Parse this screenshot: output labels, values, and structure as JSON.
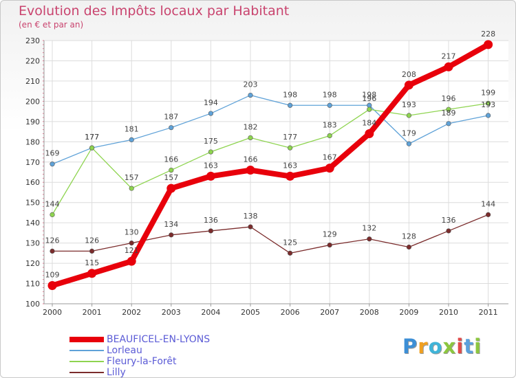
{
  "chart_data": {
    "type": "line",
    "title": "Evolution des Impôts locaux par Habitant",
    "subtitle": "(en € et par an)",
    "x": [
      "2000",
      "2001",
      "2002",
      "2003",
      "2004",
      "2005",
      "2006",
      "2007",
      "2008",
      "2009",
      "2010",
      "2011"
    ],
    "ylim": [
      100,
      230
    ],
    "yticks": [
      100,
      110,
      120,
      130,
      140,
      150,
      160,
      170,
      180,
      190,
      200,
      210,
      220,
      230
    ],
    "grid": true,
    "legend_position": "bottom-left",
    "series": [
      {
        "name": "BEAUFICEL-EN-LYONS",
        "color": "#e8000b",
        "values": [
          109,
          115,
          121,
          157,
          163,
          166,
          163,
          167,
          184,
          208,
          217,
          228
        ]
      },
      {
        "name": "Lorleau",
        "color": "#5fa2d8",
        "values": [
          169,
          177,
          181,
          187,
          194,
          203,
          198,
          198,
          198,
          179,
          189,
          193
        ]
      },
      {
        "name": "Fleury-la-Forêt",
        "color": "#8ed44f",
        "values": [
          144,
          177,
          157,
          166,
          175,
          182,
          177,
          183,
          196,
          193,
          196,
          199
        ]
      },
      {
        "name": "Lilly",
        "color": "#7b2c2c",
        "values": [
          126,
          126,
          130,
          134,
          136,
          138,
          125,
          129,
          132,
          128,
          136,
          144
        ]
      }
    ]
  },
  "brand": {
    "letters": [
      "P",
      "r",
      "o",
      "x",
      "i",
      "t",
      "i"
    ],
    "colors": [
      "#3d8fd6",
      "#f0a020",
      "#3fb4d8",
      "#8cc63f",
      "#e04a4a",
      "#5aa0dc",
      "#8cc63f"
    ]
  }
}
